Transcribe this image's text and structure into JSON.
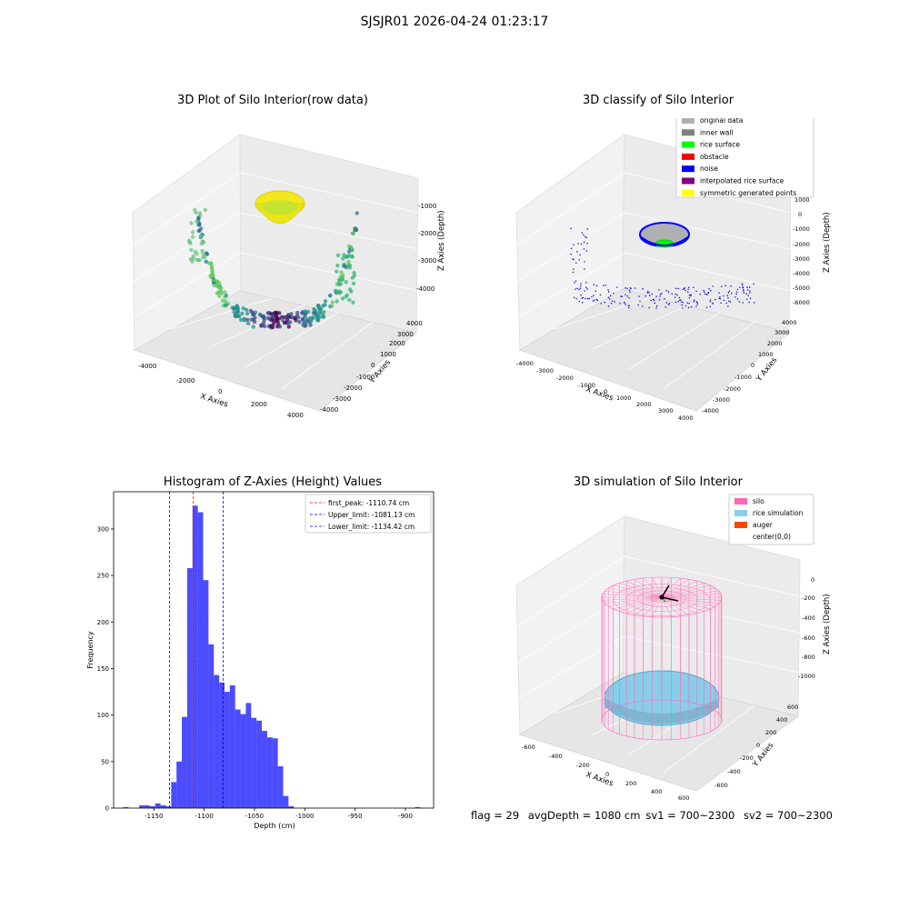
{
  "suptitle": "SJSJR01 2026-04-24 01:23:17",
  "plots": {
    "raw": {
      "title": "3D Plot of Silo Interior(row data)",
      "xlabel": "X Axies",
      "ylabel": "Y Axies",
      "zlabel": "Z Axies (Depth)",
      "xticks": [
        "-4000",
        "-2000",
        "0",
        "2000",
        "4000"
      ],
      "yticks": [
        "-4000",
        "-3000",
        "-2000",
        "-1000",
        "0",
        "1000",
        "2000",
        "3000",
        "4000"
      ],
      "zticks": [
        "-4000",
        "-3000",
        "-2000",
        "-1000"
      ]
    },
    "classify": {
      "title": "3D classify of Silo Interior",
      "xlabel": "X Axies",
      "ylabel": "Y Axies",
      "zlabel": "Z Axies (Depth)",
      "xticks": [
        "-4000",
        "-3000",
        "-2000",
        "-1000",
        "0",
        "1000",
        "2000",
        "3000",
        "4000"
      ],
      "yticks": [
        "-4000",
        "-3000",
        "-2000",
        "-1000",
        "0",
        "1000",
        "2000",
        "3000",
        "4000"
      ],
      "zticks": [
        "-6000",
        "-5000",
        "-4000",
        "-3000",
        "-2000",
        "-1000",
        "0",
        "1000",
        "2000"
      ],
      "legend": [
        {
          "label": "original data",
          "color": "#b0b0b0"
        },
        {
          "label": "inner wall",
          "color": "#808080"
        },
        {
          "label": "rice surface",
          "color": "#00ff00"
        },
        {
          "label": "obstacle",
          "color": "#ff0000"
        },
        {
          "label": "noise",
          "color": "#0000ff"
        },
        {
          "label": "interpolated rice surface",
          "color": "#800080"
        },
        {
          "label": "symmetric generated points",
          "color": "#ffff00"
        }
      ]
    },
    "simulation": {
      "title": "3D simulation of Silo Interior",
      "xlabel": "X Axies",
      "ylabel": "Y Axies",
      "zlabel": "Z Axies (Depth)",
      "xticks": [
        "-600",
        "-400",
        "-200",
        "0",
        "200",
        "400",
        "600"
      ],
      "yticks": [
        "-600",
        "-400",
        "-200",
        "0",
        "200",
        "400",
        "600"
      ],
      "zticks": [
        "-1000",
        "-800",
        "-600",
        "-400",
        "-200",
        "0"
      ],
      "legend": [
        {
          "label": "silo",
          "color": "#ff69b4"
        },
        {
          "label": "rice simulation",
          "color": "#87ceeb"
        },
        {
          "label": "auger",
          "color": "#ff4500"
        },
        {
          "label": "center(0,0)",
          "color": ""
        }
      ]
    }
  },
  "chart_data": {
    "type": "bar",
    "title": "Histogram of Z-Axies (Height) Values",
    "xlabel": "Depth (cm)",
    "ylabel": "Frequency",
    "xlim": [
      -1190,
      -872
    ],
    "ylim": [
      0,
      340
    ],
    "xticks": [
      -1150,
      -1100,
      -1050,
      -1000,
      -950,
      -900
    ],
    "yticks": [
      0,
      50,
      100,
      150,
      200,
      250,
      300
    ],
    "bar_color": "#0000ff",
    "bin_width": 5.3,
    "bin_starts": [
      -1180.5,
      -1164.6,
      -1159.3,
      -1154.0,
      -1148.7,
      -1143.4,
      -1138.1,
      -1132.8,
      -1127.5,
      -1122.2,
      -1116.9,
      -1111.6,
      -1106.3,
      -1101.0,
      -1095.7,
      -1090.4,
      -1085.1,
      -1079.8,
      -1074.5,
      -1069.2,
      -1063.9,
      -1058.6,
      -1053.3,
      -1048.0,
      -1042.7,
      -1037.4,
      -1032.1,
      -1026.8,
      -1021.5,
      -1016.2,
      -1010.9,
      -1005.6,
      -890.5
    ],
    "values": [
      1,
      3,
      3,
      2,
      5,
      3,
      2,
      28,
      50,
      98,
      258,
      325,
      318,
      245,
      176,
      143,
      135,
      125,
      132,
      106,
      101,
      113,
      97,
      94,
      83,
      76,
      75,
      45,
      13,
      2,
      0,
      0,
      1
    ],
    "vlines": [
      {
        "label": "first_peak: -1110.74 cm",
        "x": -1110.74,
        "color": "#ff0000"
      },
      {
        "label": "Upper_limit: -1081.13 cm",
        "x": -1081.13,
        "color": "#0000ff"
      },
      {
        "label": "Lower_limit: -1134.42 cm",
        "x": -1134.42,
        "color": "#0000ff"
      }
    ],
    "legend_position": "upper-right"
  },
  "footer": {
    "flag": "flag = 29",
    "avg": "avgDepth = 1080 cm",
    "sv1": "sv1 = 700~2300",
    "sv2": "sv2 = 700~2300"
  }
}
